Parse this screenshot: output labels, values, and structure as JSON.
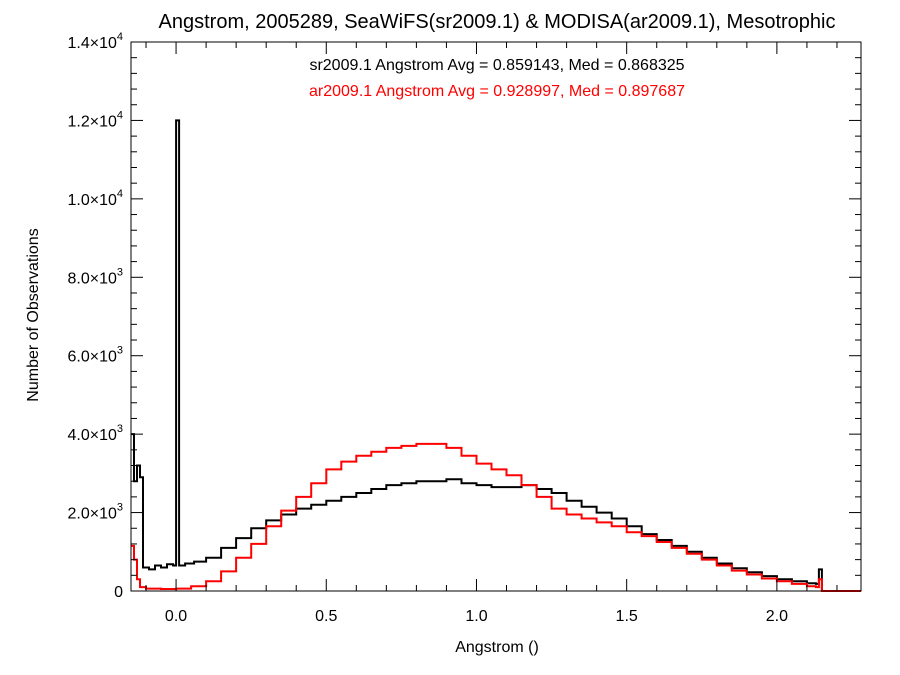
{
  "chart_data": {
    "type": "line",
    "title": "Angstrom, 2005289, SeaWiFS(sr2009.1) & MODISA(ar2009.1), Mesotrophic",
    "xlabel": "Angstrom ()",
    "ylabel": "Number of Observations",
    "xlim": [
      -0.15,
      2.28
    ],
    "ylim": [
      0,
      14000
    ],
    "x_ticks": [
      {
        "value": 0.0,
        "label": "0.0"
      },
      {
        "value": 0.5,
        "label": "0.5"
      },
      {
        "value": 1.0,
        "label": "1.0"
      },
      {
        "value": 1.5,
        "label": "1.5"
      },
      {
        "value": 2.0,
        "label": "2.0"
      }
    ],
    "y_ticks": [
      {
        "value": 0,
        "mant": "0",
        "exp": ""
      },
      {
        "value": 2000,
        "mant": "2.0×10",
        "exp": "3"
      },
      {
        "value": 4000,
        "mant": "4.0×10",
        "exp": "3"
      },
      {
        "value": 6000,
        "mant": "6.0×10",
        "exp": "3"
      },
      {
        "value": 8000,
        "mant": "8.0×10",
        "exp": "3"
      },
      {
        "value": 10000,
        "mant": "1.0×10",
        "exp": "4"
      },
      {
        "value": 12000,
        "mant": "1.2×10",
        "exp": "4"
      },
      {
        "value": 14000,
        "mant": "1.4×10",
        "exp": "4"
      }
    ],
    "grid": false,
    "annotations": [
      {
        "text": "sr2009.1 Angstrom Avg = 0.859143, Med = 0.868325",
        "color": "#000000"
      },
      {
        "text": "ar2009.1 Angstrom Avg = 0.928997, Med = 0.897687",
        "color": "#ff0000"
      }
    ],
    "series": [
      {
        "name": "sr2009.1",
        "color": "#000000",
        "points": [
          [
            -0.15,
            4000
          ],
          [
            -0.14,
            2800
          ],
          [
            -0.13,
            3200
          ],
          [
            -0.12,
            2900
          ],
          [
            -0.11,
            600
          ],
          [
            -0.09,
            550
          ],
          [
            -0.07,
            650
          ],
          [
            -0.05,
            600
          ],
          [
            -0.03,
            680
          ],
          [
            -0.01,
            650
          ],
          [
            0.0,
            12000
          ],
          [
            0.01,
            650
          ],
          [
            0.03,
            700
          ],
          [
            0.06,
            750
          ],
          [
            0.1,
            850
          ],
          [
            0.15,
            1100
          ],
          [
            0.2,
            1350
          ],
          [
            0.25,
            1600
          ],
          [
            0.3,
            1800
          ],
          [
            0.35,
            1950
          ],
          [
            0.4,
            2100
          ],
          [
            0.45,
            2200
          ],
          [
            0.5,
            2300
          ],
          [
            0.55,
            2400
          ],
          [
            0.6,
            2500
          ],
          [
            0.65,
            2600
          ],
          [
            0.7,
            2700
          ],
          [
            0.75,
            2750
          ],
          [
            0.8,
            2800
          ],
          [
            0.85,
            2800
          ],
          [
            0.9,
            2850
          ],
          [
            0.95,
            2750
          ],
          [
            1.0,
            2700
          ],
          [
            1.05,
            2650
          ],
          [
            1.1,
            2650
          ],
          [
            1.15,
            2700
          ],
          [
            1.2,
            2600
          ],
          [
            1.25,
            2500
          ],
          [
            1.3,
            2300
          ],
          [
            1.35,
            2150
          ],
          [
            1.4,
            2000
          ],
          [
            1.45,
            1850
          ],
          [
            1.5,
            1650
          ],
          [
            1.55,
            1450
          ],
          [
            1.6,
            1300
          ],
          [
            1.65,
            1150
          ],
          [
            1.7,
            1000
          ],
          [
            1.75,
            850
          ],
          [
            1.8,
            700
          ],
          [
            1.85,
            580
          ],
          [
            1.9,
            480
          ],
          [
            1.95,
            380
          ],
          [
            2.0,
            300
          ],
          [
            2.05,
            250
          ],
          [
            2.1,
            200
          ],
          [
            2.13,
            180
          ],
          [
            2.14,
            550
          ],
          [
            2.15,
            0
          ]
        ]
      },
      {
        "name": "ar2009.1",
        "color": "#ff0000",
        "points": [
          [
            -0.15,
            1150
          ],
          [
            -0.14,
            800
          ],
          [
            -0.13,
            300
          ],
          [
            -0.12,
            100
          ],
          [
            -0.1,
            60
          ],
          [
            -0.05,
            50
          ],
          [
            0.0,
            60
          ],
          [
            0.05,
            120
          ],
          [
            0.1,
            250
          ],
          [
            0.15,
            500
          ],
          [
            0.2,
            850
          ],
          [
            0.25,
            1200
          ],
          [
            0.3,
            1650
          ],
          [
            0.35,
            2050
          ],
          [
            0.4,
            2400
          ],
          [
            0.45,
            2750
          ],
          [
            0.5,
            3100
          ],
          [
            0.55,
            3300
          ],
          [
            0.6,
            3450
          ],
          [
            0.65,
            3550
          ],
          [
            0.7,
            3650
          ],
          [
            0.75,
            3700
          ],
          [
            0.8,
            3750
          ],
          [
            0.85,
            3750
          ],
          [
            0.9,
            3650
          ],
          [
            0.95,
            3450
          ],
          [
            1.0,
            3250
          ],
          [
            1.05,
            3100
          ],
          [
            1.1,
            2950
          ],
          [
            1.15,
            2700
          ],
          [
            1.2,
            2400
          ],
          [
            1.25,
            2100
          ],
          [
            1.3,
            1950
          ],
          [
            1.35,
            1850
          ],
          [
            1.4,
            1750
          ],
          [
            1.45,
            1650
          ],
          [
            1.5,
            1500
          ],
          [
            1.55,
            1400
          ],
          [
            1.6,
            1250
          ],
          [
            1.65,
            1100
          ],
          [
            1.7,
            950
          ],
          [
            1.75,
            800
          ],
          [
            1.8,
            650
          ],
          [
            1.85,
            520
          ],
          [
            1.9,
            420
          ],
          [
            1.95,
            320
          ],
          [
            2.0,
            250
          ],
          [
            2.05,
            180
          ],
          [
            2.1,
            120
          ],
          [
            2.13,
            100
          ],
          [
            2.14,
            300
          ],
          [
            2.15,
            0
          ],
          [
            2.28,
            0
          ]
        ]
      }
    ]
  }
}
